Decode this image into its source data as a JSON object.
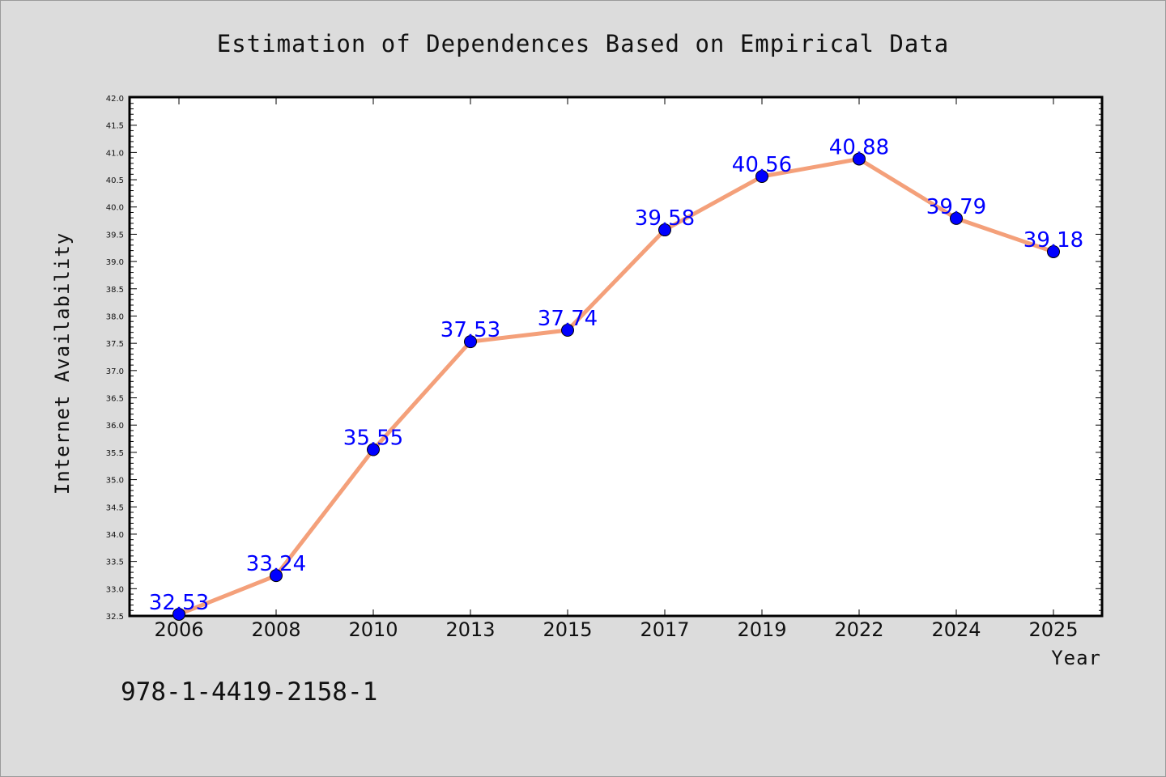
{
  "chart_data": {
    "type": "line",
    "title": "Estimation of Dependences Based on Empirical Data",
    "xlabel": "Year",
    "ylabel": "Internet Availability",
    "categories": [
      "2006",
      "2008",
      "2010",
      "2013",
      "2015",
      "2017",
      "2019",
      "2022",
      "2024",
      "2025"
    ],
    "series": [
      {
        "values": [
          32.53,
          33.24,
          35.55,
          37.53,
          37.74,
          39.58,
          40.56,
          40.88,
          39.79,
          39.18
        ],
        "labels": [
          "32.53",
          "33.24",
          "35.55",
          "37.53",
          "37.74",
          "39.58",
          "40.56",
          "40.88",
          "39.79",
          "39.18"
        ],
        "line_color": "#f4a07a",
        "marker_color": "#0000ff"
      }
    ],
    "ylim": [
      32.5,
      42.0
    ],
    "y_ticks": [
      "32.5",
      "33.0",
      "33.5",
      "34.0",
      "34.5",
      "35.0",
      "35.5",
      "36.0",
      "36.5",
      "37.0",
      "37.5",
      "38.0",
      "38.5",
      "39.0",
      "39.5",
      "40.0",
      "40.5",
      "41.0",
      "41.5",
      "42.0"
    ],
    "grid": false,
    "legend": "none"
  },
  "footer": {
    "id_text": "978-1-4419-2158-1"
  },
  "colors": {
    "background": "#dcdcdc",
    "plot_background": "#ffffff",
    "line": "#f4a07a",
    "marker": "#0000ff",
    "data_label": "#0000ff"
  }
}
